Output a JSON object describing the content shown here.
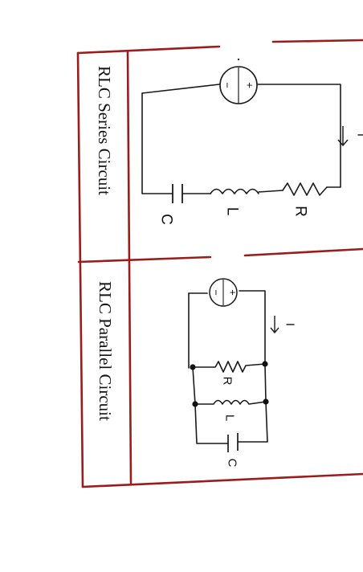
{
  "panels": {
    "series": {
      "title": "RLC Series Circuit",
      "labels": {
        "resistor": "R",
        "inductor": "L",
        "capacitor": "C",
        "current": "I"
      },
      "source_signs": {
        "minus": "−",
        "plus": "+"
      }
    },
    "parallel": {
      "title": "RLC Parallel Circuit",
      "labels": {
        "resistor": "R",
        "inductor": "L",
        "capacitor": "C",
        "current": "I"
      },
      "source_signs": {
        "minus": "−",
        "plus": "+"
      }
    }
  },
  "colors": {
    "frame": "#9b1c1c",
    "ink": "#1a1a1a"
  }
}
